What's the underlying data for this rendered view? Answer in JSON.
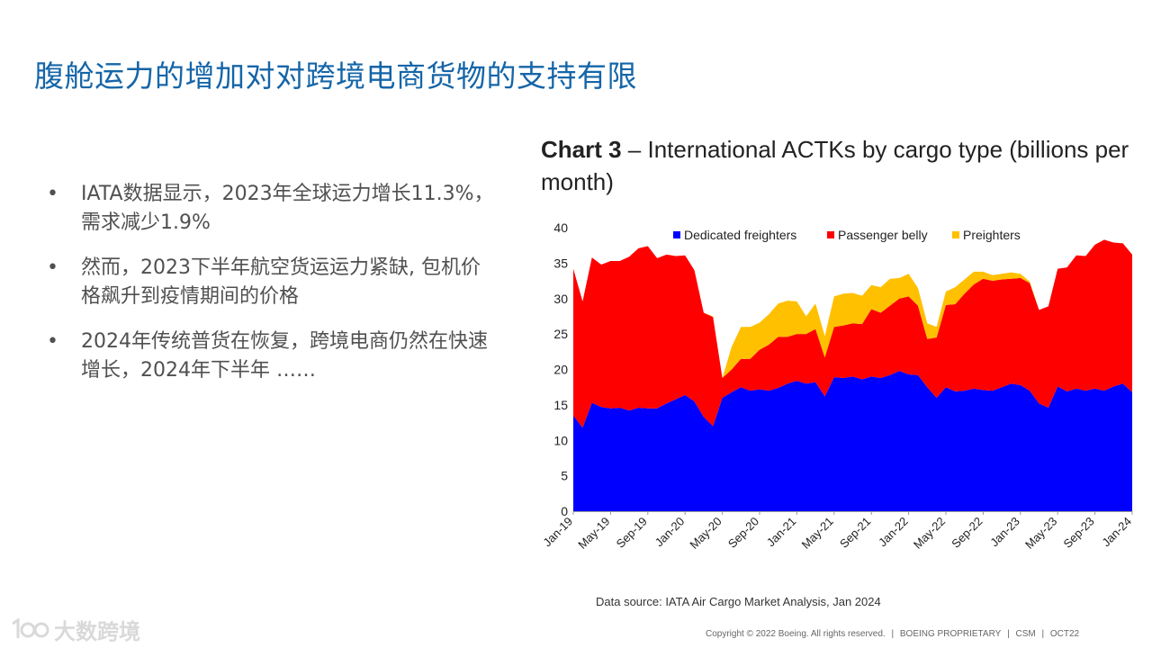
{
  "slide": {
    "title": "腹舱运力的增加对对跨境电商货物的支持有限",
    "bullets": [
      {
        "marker": "•",
        "text": "IATA数据显示，2023年全球运力增长11.3%，需求减少1.9%"
      },
      {
        "marker": "•",
        "text": "然而，2023下半年航空货运运力紧缺, 包机价格飙升到疫情期间的价格"
      },
      {
        "marker": "•",
        "text": "2024年传统普货在恢复，跨境电商仍然在快速增长，2024年下半年 ……"
      }
    ],
    "chart_title_bold": "Chart 3",
    "chart_title_rest": " – International ACTKs by cargo type (billions per month)",
    "source": "Data source: IATA Air Cargo Market Analysis, Jan 2024",
    "footer": [
      "Copyright © 2022 Boeing. All rights reserved.",
      "|",
      "BOEING PROPRIETARY",
      "|",
      "CSM",
      "|",
      "OCT22"
    ],
    "watermark": {
      "logo": "100-icon",
      "text": "大数跨境"
    },
    "colors": {
      "title": "#1565a8",
      "dedicated": "#0000ff",
      "belly": "#ff0000",
      "preighters": "#ffc000"
    }
  },
  "chart_data": {
    "type": "area",
    "stacked": true,
    "title": "Chart 3 – International ACTKs by cargo type (billions per month)",
    "ylim": [
      0,
      40
    ],
    "yticks": [
      0,
      5,
      10,
      15,
      20,
      25,
      30,
      35,
      40
    ],
    "xtick_labels": [
      "Jan-19",
      "May-19",
      "Sep-19",
      "Jan-20",
      "May-20",
      "Sep-20",
      "Jan-21",
      "May-21",
      "Sep-21",
      "Jan-22",
      "May-22",
      "Sep-22",
      "Jan-23",
      "May-23",
      "Sep-23",
      "Jan-24"
    ],
    "legend_position": "top",
    "grid": false,
    "x": [
      "Jan-19",
      "Feb-19",
      "Mar-19",
      "Apr-19",
      "May-19",
      "Jun-19",
      "Jul-19",
      "Aug-19",
      "Sep-19",
      "Oct-19",
      "Nov-19",
      "Dec-19",
      "Jan-20",
      "Feb-20",
      "Mar-20",
      "Apr-20",
      "May-20",
      "Jun-20",
      "Jul-20",
      "Aug-20",
      "Sep-20",
      "Oct-20",
      "Nov-20",
      "Dec-20",
      "Jan-21",
      "Feb-21",
      "Mar-21",
      "Apr-21",
      "May-21",
      "Jun-21",
      "Jul-21",
      "Aug-21",
      "Sep-21",
      "Oct-21",
      "Nov-21",
      "Dec-21",
      "Jan-22",
      "Feb-22",
      "Mar-22",
      "Apr-22",
      "May-22",
      "Jun-22",
      "Jul-22",
      "Aug-22",
      "Sep-22",
      "Oct-22",
      "Nov-22",
      "Dec-22",
      "Jan-23",
      "Feb-23",
      "Mar-23",
      "Apr-23",
      "May-23",
      "Jun-23",
      "Jul-23",
      "Aug-23",
      "Sep-23",
      "Oct-23",
      "Nov-23",
      "Dec-23",
      "Jan-24"
    ],
    "series": [
      {
        "name": "Dedicated freighters",
        "color": "#0000ff",
        "values": [
          13.5,
          11.8,
          15.3,
          14.7,
          14.5,
          14.6,
          14.2,
          14.6,
          14.5,
          14.5,
          15.2,
          15.8,
          16.4,
          15.5,
          13.3,
          12.0,
          16.0,
          16.8,
          17.5,
          17.0,
          17.2,
          17.0,
          17.4,
          18.0,
          18.4,
          18.0,
          18.2,
          16.2,
          18.9,
          18.8,
          19.0,
          18.6,
          19.0,
          18.8,
          19.2,
          19.8,
          19.3,
          19.2,
          17.5,
          16.0,
          17.5,
          16.9,
          17.0,
          17.3,
          17.1,
          17.0,
          17.5,
          18.0,
          17.8,
          17.0,
          15.2,
          14.6,
          17.6,
          16.9,
          17.3,
          17.0,
          17.3,
          17.0,
          17.6,
          18.0,
          16.8
        ]
      },
      {
        "name": "Passenger belly",
        "color": "#ff0000",
        "values": [
          20.7,
          17.8,
          20.5,
          20.1,
          20.8,
          20.7,
          21.7,
          22.5,
          22.9,
          21.2,
          21.0,
          20.2,
          19.7,
          18.5,
          14.7,
          15.4,
          2.8,
          3.2,
          4.0,
          4.5,
          5.6,
          6.5,
          7.2,
          6.6,
          6.6,
          7.0,
          7.5,
          5.5,
          7.1,
          7.4,
          7.5,
          7.8,
          9.5,
          9.2,
          9.8,
          10.2,
          11.0,
          9.8,
          6.8,
          8.5,
          11.6,
          12.3,
          13.7,
          14.7,
          15.7,
          15.5,
          15.2,
          14.8,
          15.1,
          15.2,
          13.2,
          14.3,
          16.6,
          17.5,
          18.8,
          19.0,
          20.3,
          21.3,
          20.3,
          19.8,
          19.4
        ]
      },
      {
        "name": "Preighters",
        "color": "#ffc000",
        "values": [
          0,
          0,
          0,
          0,
          0,
          0,
          0,
          0,
          0,
          0,
          0,
          0,
          0,
          0,
          0,
          0.1,
          0,
          3.2,
          4.5,
          4.5,
          3.8,
          4.3,
          4.7,
          5.1,
          4.6,
          2.5,
          3.6,
          3.0,
          4.3,
          4.5,
          4.3,
          4.0,
          3.4,
          3.6,
          3.8,
          2.9,
          3.2,
          2.5,
          2.2,
          1.5,
          1.9,
          2.4,
          2.0,
          1.8,
          1.0,
          0.8,
          0.8,
          0.9,
          0.6,
          0.2,
          0,
          0,
          0,
          0,
          0,
          0,
          0,
          0,
          0,
          0,
          0
        ]
      }
    ]
  }
}
